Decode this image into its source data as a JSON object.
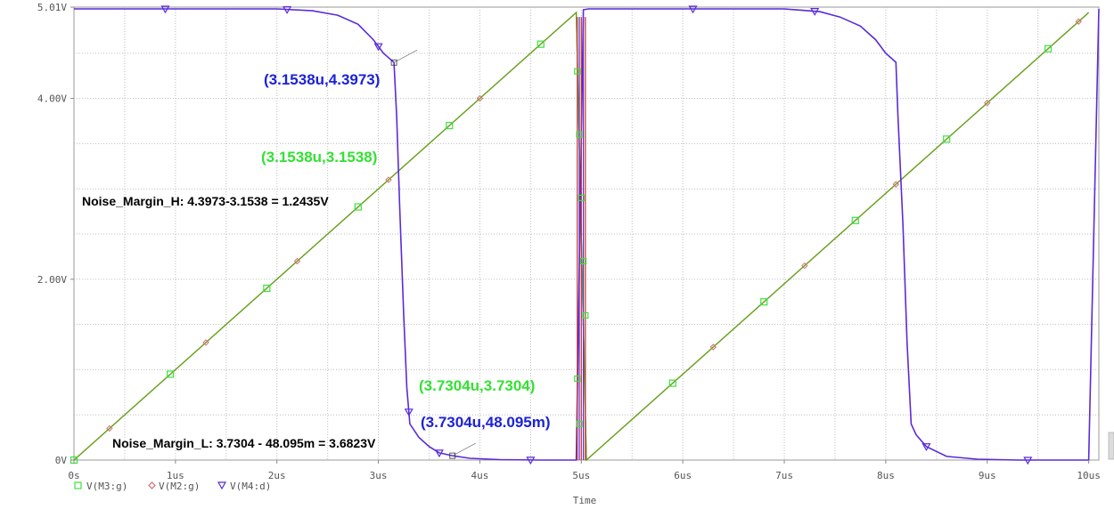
{
  "chart_data": {
    "type": "line",
    "xlabel": "Time",
    "ylabel": "",
    "xlim": [
      0,
      10.1
    ],
    "ylim": [
      0,
      5.01
    ],
    "x_unit": "us",
    "x_ticks": [
      {
        "value": 0,
        "label": "0s"
      },
      {
        "value": 1,
        "label": "1us"
      },
      {
        "value": 2,
        "label": "2us"
      },
      {
        "value": 3,
        "label": "3us"
      },
      {
        "value": 4,
        "label": "4us"
      },
      {
        "value": 5,
        "label": "5us"
      },
      {
        "value": 6,
        "label": "6us"
      },
      {
        "value": 7,
        "label": "7us"
      },
      {
        "value": 8,
        "label": "8us"
      },
      {
        "value": 9,
        "label": "9us"
      },
      {
        "value": 10,
        "label": "10us"
      }
    ],
    "y_ticks": [
      {
        "value": 0,
        "label": "0V"
      },
      {
        "value": 2,
        "label": "2.00V"
      },
      {
        "value": 4,
        "label": "4.00V"
      },
      {
        "value": 5.01,
        "label": "5.01V"
      }
    ],
    "grid": true,
    "legend_position": "bottom-left",
    "series": [
      {
        "name": "V(M3:g)",
        "color": "#6aa121",
        "marker": "square",
        "marker_color": "#3ee03e",
        "x": [
          0,
          4.95,
          5.05,
          10.0
        ],
        "y": [
          0,
          4.95,
          0,
          4.95
        ],
        "marker_x": [
          0,
          0.95,
          1.9,
          2.8,
          3.7,
          4.6,
          5.9,
          6.8,
          7.7,
          8.6,
          9.6
        ]
      },
      {
        "name": "V(M2:g)",
        "color": "#6aa121",
        "marker": "diamond",
        "marker_color": "#d07070",
        "x": [
          0,
          4.95,
          5.05,
          10.0
        ],
        "y": [
          0,
          4.95,
          0,
          4.95
        ],
        "marker_x": [
          0.35,
          1.3,
          2.2,
          3.1,
          4.0,
          6.3,
          7.2,
          8.1,
          9.0,
          9.9
        ]
      },
      {
        "name": "V(M4:d)",
        "color": "#5a2bd8",
        "marker": "triangle-down",
        "marker_color": "#5a2bd8",
        "x": [
          0,
          2.0,
          2.35,
          2.6,
          2.8,
          2.95,
          3.05,
          3.1538,
          3.18,
          3.21,
          3.25,
          3.28,
          3.31,
          3.4,
          3.5,
          3.6,
          3.7304,
          3.9,
          4.2,
          4.6,
          4.95,
          5.02,
          5.07,
          7.0,
          7.35,
          7.55,
          7.75,
          7.9,
          8.0,
          8.1,
          8.12,
          8.17,
          8.21,
          8.25,
          8.3,
          8.4,
          8.6,
          8.9,
          9.3,
          10.0,
          10.1
        ],
        "y": [
          4.99,
          4.99,
          4.97,
          4.92,
          4.82,
          4.65,
          4.5,
          4.3973,
          3.8,
          2.8,
          1.6,
          0.8,
          0.4,
          0.25,
          0.15,
          0.08,
          0.048,
          0.02,
          0.005,
          0,
          0,
          4.98,
          4.99,
          4.99,
          4.96,
          4.9,
          4.8,
          4.65,
          4.5,
          4.4,
          3.8,
          2.6,
          1.3,
          0.4,
          0.28,
          0.15,
          0.04,
          0.01,
          0,
          0,
          4.99
        ],
        "marker_x": [
          0.9,
          2.1,
          3.0,
          3.3,
          3.6,
          4.5,
          6.1,
          7.3,
          8.4,
          9.4
        ]
      }
    ],
    "annotations": [
      {
        "text": "(3.1538u,4.3973)",
        "color": "#1c22d6"
      },
      {
        "text": "(3.1538u,3.1538)",
        "color": "#34e034"
      },
      {
        "text": "Noise_Margin_H: 4.3973-3.1538 = 1.2435V",
        "color": "#000000"
      },
      {
        "text": "(3.7304u,3.7304)",
        "color": "#34e034"
      },
      {
        "text": "(3.7304u,48.095m)",
        "color": "#1c22d6"
      },
      {
        "text": "Noise_Margin_L: 3.7304 - 48.095m = 3.6823V",
        "color": "#000000"
      }
    ],
    "cursor_points": [
      {
        "x": 3.1538,
        "y": 4.3973
      },
      {
        "x": 3.7304,
        "y": 0.048
      }
    ]
  }
}
